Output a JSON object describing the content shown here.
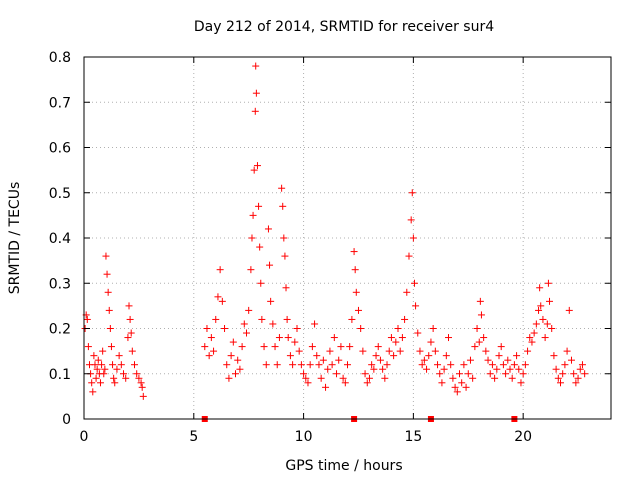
{
  "chart_data": {
    "type": "scatter",
    "title": "Day 212 of 2014, SRMTID for receiver sur4",
    "xlabel": "GPS time / hours",
    "ylabel": "SRMTID / TECUs",
    "xlim": [
      0,
      24
    ],
    "ylim": [
      0,
      0.8
    ],
    "xticks": [
      0,
      5,
      10,
      15,
      20
    ],
    "xtick_labels": [
      "0",
      "5",
      "10",
      "15",
      "20"
    ],
    "yticks": [
      0,
      0.1,
      0.2,
      0.3,
      0.4,
      0.5,
      0.6,
      0.7,
      0.8
    ],
    "ytick_labels": [
      "0",
      "0.1",
      "0.2",
      "0.3",
      "0.4",
      "0.5",
      "0.6",
      "0.7",
      "0.8"
    ],
    "grid": true,
    "marker": "+",
    "color": "#ff0000",
    "series": [
      {
        "name": "SRMTID",
        "points": [
          [
            0.05,
            0.2
          ],
          [
            0.1,
            0.23
          ],
          [
            0.15,
            0.22
          ],
          [
            0.2,
            0.16
          ],
          [
            0.25,
            0.12
          ],
          [
            0.3,
            0.1
          ],
          [
            0.35,
            0.08
          ],
          [
            0.4,
            0.06
          ],
          [
            0.45,
            0.14
          ],
          [
            0.5,
            0.12
          ],
          [
            0.55,
            0.09
          ],
          [
            0.6,
            0.11
          ],
          [
            0.65,
            0.13
          ],
          [
            0.7,
            0.1
          ],
          [
            0.75,
            0.08
          ],
          [
            0.8,
            0.12
          ],
          [
            0.85,
            0.15
          ],
          [
            0.9,
            0.1
          ],
          [
            0.95,
            0.11
          ],
          [
            1.0,
            0.36
          ],
          [
            1.05,
            0.32
          ],
          [
            1.1,
            0.28
          ],
          [
            1.15,
            0.24
          ],
          [
            1.2,
            0.2
          ],
          [
            1.25,
            0.16
          ],
          [
            1.3,
            0.12
          ],
          [
            1.35,
            0.09
          ],
          [
            1.4,
            0.08
          ],
          [
            1.5,
            0.11
          ],
          [
            1.6,
            0.14
          ],
          [
            1.7,
            0.12
          ],
          [
            1.8,
            0.1
          ],
          [
            1.9,
            0.09
          ],
          [
            2.0,
            0.18
          ],
          [
            2.05,
            0.25
          ],
          [
            2.1,
            0.22
          ],
          [
            2.15,
            0.19
          ],
          [
            2.2,
            0.15
          ],
          [
            2.3,
            0.12
          ],
          [
            2.4,
            0.1
          ],
          [
            2.5,
            0.09
          ],
          [
            2.6,
            0.08
          ],
          [
            2.65,
            0.07
          ],
          [
            2.7,
            0.05
          ],
          [
            5.5,
            0.16
          ],
          [
            5.6,
            0.2
          ],
          [
            5.7,
            0.14
          ],
          [
            5.8,
            0.18
          ],
          [
            5.9,
            0.15
          ],
          [
            6.0,
            0.22
          ],
          [
            6.1,
            0.27
          ],
          [
            6.2,
            0.33
          ],
          [
            6.3,
            0.26
          ],
          [
            6.4,
            0.2
          ],
          [
            6.5,
            0.12
          ],
          [
            6.6,
            0.09
          ],
          [
            6.7,
            0.14
          ],
          [
            6.8,
            0.17
          ],
          [
            6.9,
            0.1
          ],
          [
            7.0,
            0.13
          ],
          [
            7.1,
            0.11
          ],
          [
            7.2,
            0.16
          ],
          [
            7.3,
            0.21
          ],
          [
            7.4,
            0.19
          ],
          [
            7.5,
            0.24
          ],
          [
            7.6,
            0.33
          ],
          [
            7.65,
            0.4
          ],
          [
            7.7,
            0.45
          ],
          [
            7.75,
            0.55
          ],
          [
            7.8,
            0.68
          ],
          [
            7.82,
            0.78
          ],
          [
            7.85,
            0.72
          ],
          [
            7.9,
            0.56
          ],
          [
            7.95,
            0.47
          ],
          [
            8.0,
            0.38
          ],
          [
            8.05,
            0.3
          ],
          [
            8.1,
            0.22
          ],
          [
            8.2,
            0.16
          ],
          [
            8.3,
            0.12
          ],
          [
            8.4,
            0.42
          ],
          [
            8.45,
            0.34
          ],
          [
            8.5,
            0.26
          ],
          [
            8.6,
            0.21
          ],
          [
            8.7,
            0.16
          ],
          [
            8.8,
            0.12
          ],
          [
            8.9,
            0.18
          ],
          [
            9.0,
            0.51
          ],
          [
            9.05,
            0.47
          ],
          [
            9.1,
            0.4
          ],
          [
            9.15,
            0.36
          ],
          [
            9.2,
            0.29
          ],
          [
            9.25,
            0.22
          ],
          [
            9.3,
            0.18
          ],
          [
            9.4,
            0.14
          ],
          [
            9.5,
            0.12
          ],
          [
            9.6,
            0.17
          ],
          [
            9.7,
            0.2
          ],
          [
            9.8,
            0.15
          ],
          [
            9.9,
            0.12
          ],
          [
            10.0,
            0.1
          ],
          [
            10.1,
            0.09
          ],
          [
            10.2,
            0.08
          ],
          [
            10.3,
            0.12
          ],
          [
            10.4,
            0.16
          ],
          [
            10.5,
            0.21
          ],
          [
            10.6,
            0.14
          ],
          [
            10.7,
            0.12
          ],
          [
            10.8,
            0.09
          ],
          [
            10.9,
            0.13
          ],
          [
            11.0,
            0.07
          ],
          [
            11.1,
            0.11
          ],
          [
            11.2,
            0.15
          ],
          [
            11.3,
            0.12
          ],
          [
            11.4,
            0.18
          ],
          [
            11.5,
            0.1
          ],
          [
            11.6,
            0.13
          ],
          [
            11.7,
            0.16
          ],
          [
            11.8,
            0.09
          ],
          [
            11.9,
            0.08
          ],
          [
            12.0,
            0.12
          ],
          [
            12.1,
            0.16
          ],
          [
            12.2,
            0.22
          ],
          [
            12.3,
            0.37
          ],
          [
            12.35,
            0.33
          ],
          [
            12.4,
            0.28
          ],
          [
            12.5,
            0.24
          ],
          [
            12.6,
            0.2
          ],
          [
            12.7,
            0.15
          ],
          [
            12.8,
            0.1
          ],
          [
            12.9,
            0.08
          ],
          [
            13.0,
            0.09
          ],
          [
            13.1,
            0.12
          ],
          [
            13.2,
            0.11
          ],
          [
            13.3,
            0.14
          ],
          [
            13.4,
            0.16
          ],
          [
            13.5,
            0.13
          ],
          [
            13.6,
            0.11
          ],
          [
            13.7,
            0.09
          ],
          [
            13.8,
            0.12
          ],
          [
            13.9,
            0.15
          ],
          [
            14.0,
            0.18
          ],
          [
            14.1,
            0.14
          ],
          [
            14.2,
            0.17
          ],
          [
            14.3,
            0.2
          ],
          [
            14.4,
            0.15
          ],
          [
            14.5,
            0.18
          ],
          [
            14.6,
            0.22
          ],
          [
            14.7,
            0.28
          ],
          [
            14.8,
            0.36
          ],
          [
            14.9,
            0.44
          ],
          [
            14.95,
            0.5
          ],
          [
            15.0,
            0.4
          ],
          [
            15.05,
            0.3
          ],
          [
            15.1,
            0.25
          ],
          [
            15.2,
            0.19
          ],
          [
            15.3,
            0.15
          ],
          [
            15.4,
            0.12
          ],
          [
            15.5,
            0.13
          ],
          [
            15.6,
            0.11
          ],
          [
            15.7,
            0.14
          ],
          [
            15.8,
            0.17
          ],
          [
            15.9,
            0.2
          ],
          [
            16.0,
            0.15
          ],
          [
            16.1,
            0.12
          ],
          [
            16.2,
            0.1
          ],
          [
            16.3,
            0.08
          ],
          [
            16.4,
            0.11
          ],
          [
            16.5,
            0.14
          ],
          [
            16.6,
            0.18
          ],
          [
            16.7,
            0.12
          ],
          [
            16.8,
            0.09
          ],
          [
            16.9,
            0.07
          ],
          [
            17.0,
            0.06
          ],
          [
            17.1,
            0.1
          ],
          [
            17.2,
            0.08
          ],
          [
            17.3,
            0.12
          ],
          [
            17.4,
            0.07
          ],
          [
            17.5,
            0.1
          ],
          [
            17.6,
            0.13
          ],
          [
            17.7,
            0.09
          ],
          [
            17.8,
            0.16
          ],
          [
            17.9,
            0.2
          ],
          [
            18.0,
            0.17
          ],
          [
            18.05,
            0.26
          ],
          [
            18.1,
            0.23
          ],
          [
            18.2,
            0.18
          ],
          [
            18.3,
            0.15
          ],
          [
            18.4,
            0.13
          ],
          [
            18.5,
            0.1
          ],
          [
            18.6,
            0.12
          ],
          [
            18.7,
            0.09
          ],
          [
            18.8,
            0.11
          ],
          [
            18.9,
            0.14
          ],
          [
            19.0,
            0.16
          ],
          [
            19.1,
            0.12
          ],
          [
            19.2,
            0.1
          ],
          [
            19.3,
            0.13
          ],
          [
            19.4,
            0.11
          ],
          [
            19.5,
            0.09
          ],
          [
            19.6,
            0.12
          ],
          [
            19.7,
            0.14
          ],
          [
            19.8,
            0.11
          ],
          [
            19.9,
            0.08
          ],
          [
            20.0,
            0.1
          ],
          [
            20.1,
            0.12
          ],
          [
            20.2,
            0.15
          ],
          [
            20.3,
            0.18
          ],
          [
            20.4,
            0.17
          ],
          [
            20.5,
            0.19
          ],
          [
            20.6,
            0.21
          ],
          [
            20.7,
            0.24
          ],
          [
            20.75,
            0.29
          ],
          [
            20.8,
            0.25
          ],
          [
            20.9,
            0.22
          ],
          [
            21.0,
            0.18
          ],
          [
            21.1,
            0.21
          ],
          [
            21.15,
            0.3
          ],
          [
            21.2,
            0.26
          ],
          [
            21.3,
            0.2
          ],
          [
            21.4,
            0.14
          ],
          [
            21.5,
            0.11
          ],
          [
            21.6,
            0.09
          ],
          [
            21.7,
            0.08
          ],
          [
            21.8,
            0.1
          ],
          [
            21.9,
            0.12
          ],
          [
            22.0,
            0.15
          ],
          [
            22.1,
            0.24
          ],
          [
            22.2,
            0.13
          ],
          [
            22.3,
            0.1
          ],
          [
            22.4,
            0.08
          ],
          [
            22.5,
            0.09
          ],
          [
            22.6,
            0.11
          ],
          [
            22.7,
            0.12
          ],
          [
            22.8,
            0.1
          ]
        ],
        "markers_on_axis": [
          5.5,
          12.3,
          15.8,
          19.6
        ]
      }
    ]
  }
}
